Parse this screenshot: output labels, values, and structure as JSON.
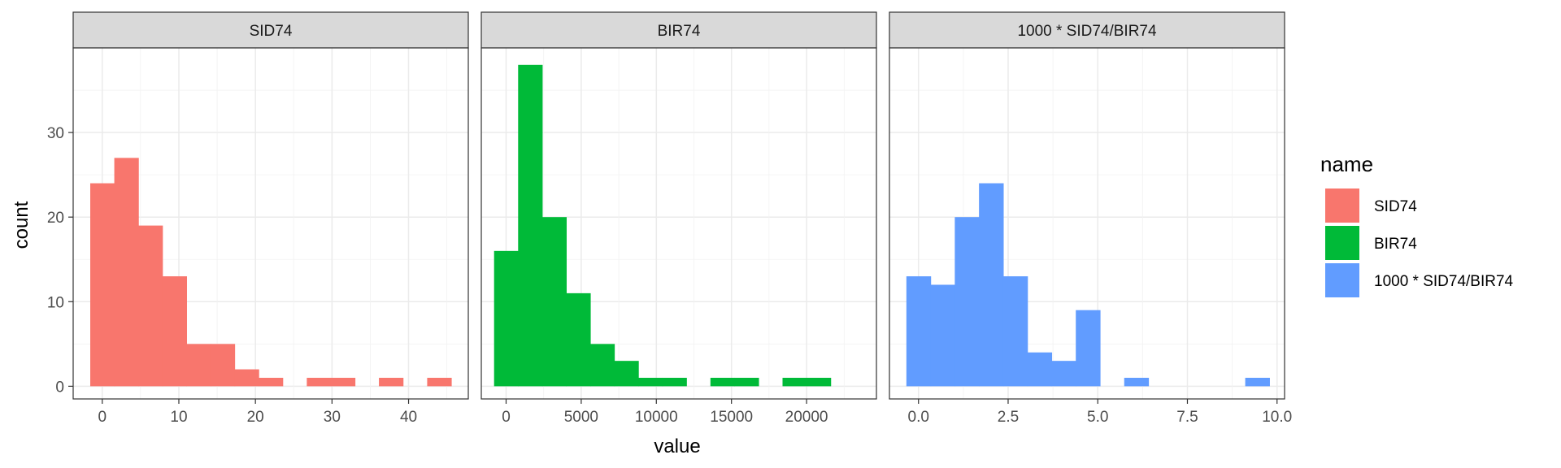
{
  "chart_data": {
    "type": "bar",
    "subtype": "faceted-histogram",
    "xlabel": "value",
    "ylabel": "count",
    "ylim": [
      -1.5,
      40
    ],
    "y_ticks": [
      0,
      10,
      20,
      30
    ],
    "grid": true,
    "legend": {
      "title": "name",
      "placement": "right",
      "entries": [
        {
          "label": "SID74",
          "color": "#F8766D"
        },
        {
          "label": "BIR74",
          "color": "#00BA38"
        },
        {
          "label": "1000 * SID74/BIR74",
          "color": "#619CFF"
        }
      ]
    },
    "facets": [
      {
        "title": "SID74",
        "color": "#F8766D",
        "xlim": [
          -3.8,
          47.8
        ],
        "x_ticks": [
          0,
          10,
          20,
          30,
          40
        ],
        "x_tick_labels": [
          "0",
          "10",
          "20",
          "30",
          "40"
        ],
        "bin_width": 3.14,
        "bins": [
          {
            "center": 0,
            "count": 24
          },
          {
            "center": 3.14,
            "count": 27
          },
          {
            "center": 6.28,
            "count": 19
          },
          {
            "center": 9.43,
            "count": 13
          },
          {
            "center": 12.57,
            "count": 5
          },
          {
            "center": 15.71,
            "count": 5
          },
          {
            "center": 18.85,
            "count": 2
          },
          {
            "center": 21.99,
            "count": 1
          },
          {
            "center": 28.28,
            "count": 1
          },
          {
            "center": 31.42,
            "count": 1
          },
          {
            "center": 37.7,
            "count": 1
          },
          {
            "center": 44.0,
            "count": 1
          }
        ]
      },
      {
        "title": "BIR74",
        "color": "#00BA38",
        "xlim": [
          -1650,
          24650
        ],
        "x_ticks": [
          0,
          5000,
          10000,
          15000,
          20000
        ],
        "x_tick_labels": [
          "0",
          "5000",
          "10000",
          "15000",
          "20000"
        ],
        "bin_width": 1600,
        "bins": [
          {
            "center": 0,
            "count": 16
          },
          {
            "center": 1600,
            "count": 38
          },
          {
            "center": 3200,
            "count": 20
          },
          {
            "center": 4800,
            "count": 11
          },
          {
            "center": 6400,
            "count": 5
          },
          {
            "center": 8000,
            "count": 3
          },
          {
            "center": 9600,
            "count": 1
          },
          {
            "center": 11200,
            "count": 1
          },
          {
            "center": 14400,
            "count": 1
          },
          {
            "center": 16000,
            "count": 1
          },
          {
            "center": 19200,
            "count": 1
          },
          {
            "center": 20800,
            "count": 1
          }
        ]
      },
      {
        "title": "1000 * SID74/BIR74",
        "color": "#619CFF",
        "xlim": [
          -0.81,
          10.21
        ],
        "x_ticks": [
          0,
          2.5,
          5,
          7.5,
          10
        ],
        "x_tick_labels": [
          "0.0",
          "2.5",
          "5.0",
          "7.5",
          "10.0"
        ],
        "bin_width": 0.675,
        "bins": [
          {
            "center": 0,
            "count": 13
          },
          {
            "center": 0.675,
            "count": 12
          },
          {
            "center": 1.35,
            "count": 20
          },
          {
            "center": 2.025,
            "count": 24
          },
          {
            "center": 2.7,
            "count": 13
          },
          {
            "center": 3.375,
            "count": 4
          },
          {
            "center": 4.05,
            "count": 3
          },
          {
            "center": 4.725,
            "count": 9
          },
          {
            "center": 6.075,
            "count": 1
          },
          {
            "center": 9.45,
            "count": 1
          }
        ]
      }
    ]
  }
}
